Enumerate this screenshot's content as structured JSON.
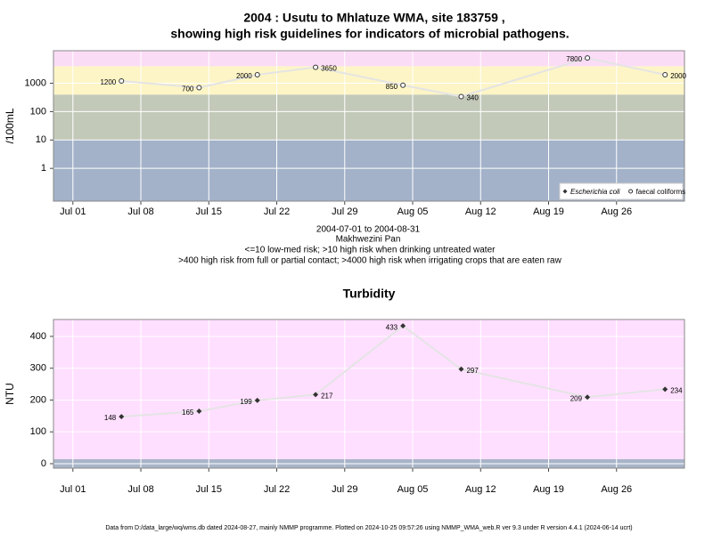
{
  "chart_data": [
    {
      "type": "line",
      "log_y": true,
      "title": "2004 : Usutu to Mhlatuze WMA, site 183759 ,",
      "subtitle": "showing high risk guidelines for indicators of microbial pathogens.",
      "ylabel": "/100mL",
      "xlabel": "2004-07-01 to 2004-08-31",
      "annotations": [
        "Makhwezini Pan",
        "<=10 low-med risk; >10 high risk when drinking untreated water",
        ">400 high risk from full or partial contact; >4000 high risk when irrigating crops that are eaten raw"
      ],
      "x": [
        "2004-07-06",
        "2004-07-14",
        "2004-07-20",
        "2004-07-26",
        "2004-08-04",
        "2004-08-10",
        "2004-08-23",
        "2004-08-31"
      ],
      "series": [
        {
          "name": "Escherichia coli",
          "marker": "filled-diamond",
          "color": "#333333",
          "values": [
            null,
            null,
            null,
            null,
            null,
            null,
            null,
            null
          ]
        },
        {
          "name": "faecal coliforms",
          "marker": "open-circle",
          "color": "#333333",
          "values": [
            1200,
            700,
            2000,
            3650,
            850,
            340,
            7800,
            2000
          ]
        }
      ],
      "xlim": [
        "2004-06-29",
        "2004-09-02"
      ],
      "xticks": [
        {
          "value": "2004-07-01",
          "label": "Jul 01"
        },
        {
          "value": "2004-07-08",
          "label": "Jul 08"
        },
        {
          "value": "2004-07-15",
          "label": "Jul 15"
        },
        {
          "value": "2004-07-22",
          "label": "Jul 22"
        },
        {
          "value": "2004-07-29",
          "label": "Jul 29"
        },
        {
          "value": "2004-08-05",
          "label": "Aug 05"
        },
        {
          "value": "2004-08-12",
          "label": "Aug 12"
        },
        {
          "value": "2004-08-19",
          "label": "Aug 19"
        },
        {
          "value": "2004-08-26",
          "label": "Aug 26"
        }
      ],
      "ylim": [
        0.07,
        14000
      ],
      "yticks": [
        1,
        10,
        100,
        1000
      ],
      "thresholds": [
        10,
        400,
        4000
      ],
      "band_colors": [
        "#a3b2c9",
        "#c3c9b9",
        "#fdf5c6",
        "#fbdcf6"
      ],
      "grid": true,
      "legend": "bottom-right"
    },
    {
      "type": "line",
      "log_y": false,
      "title": "Turbidity",
      "ylabel": "NTU",
      "x": [
        "2004-07-06",
        "2004-07-14",
        "2004-07-20",
        "2004-07-26",
        "2004-08-04",
        "2004-08-10",
        "2004-08-23",
        "2004-08-31"
      ],
      "values": [
        148,
        165,
        199,
        217,
        433,
        297,
        209,
        234
      ],
      "marker": "filled-diamond",
      "color": "#333333",
      "xlim": [
        "2004-06-29",
        "2004-09-02"
      ],
      "xticks": [
        {
          "value": "2004-07-01",
          "label": "Jul 01"
        },
        {
          "value": "2004-07-08",
          "label": "Jul 08"
        },
        {
          "value": "2004-07-15",
          "label": "Jul 15"
        },
        {
          "value": "2004-07-22",
          "label": "Jul 22"
        },
        {
          "value": "2004-07-29",
          "label": "Jul 29"
        },
        {
          "value": "2004-08-05",
          "label": "Aug 05"
        },
        {
          "value": "2004-08-12",
          "label": "Aug 12"
        },
        {
          "value": "2004-08-19",
          "label": "Aug 19"
        },
        {
          "value": "2004-08-26",
          "label": "Aug 26"
        }
      ],
      "ylim": [
        -14,
        453
      ],
      "yticks": [
        0,
        100,
        200,
        300,
        400
      ],
      "thresholds": [
        14
      ],
      "band_colors": [
        "#a8b4c8",
        "#ffdfff"
      ],
      "grid": true
    }
  ],
  "footer": "Data from D:/data_large/wq/wms.db dated 2024-08-27, mainly NMMP programme. Plotted on 2024-10-25 09:57:26 using NMMP_WMA_web.R ver 9.3 under R version 4.4.1 (2024-06-14 ucrt)"
}
